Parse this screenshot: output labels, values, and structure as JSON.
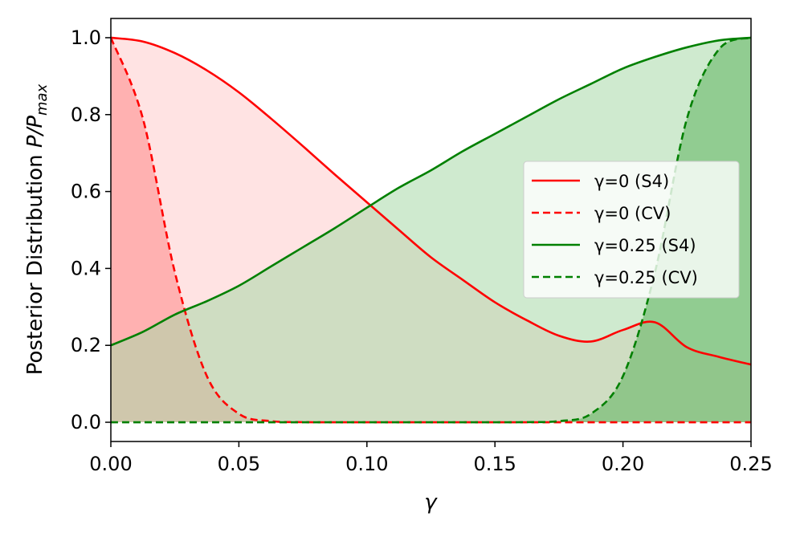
{
  "chart_data": {
    "type": "line",
    "xlabel": "γ",
    "ylabel_main": "Posterior Distribution ",
    "ylabel_math": "P/P",
    "ylabel_sub": "max",
    "xlim": [
      0.0,
      0.25
    ],
    "ylim": [
      -0.05,
      1.05
    ],
    "xticks": [
      0.0,
      0.05,
      0.1,
      0.15,
      0.2,
      0.25
    ],
    "xtick_labels": [
      "0.00",
      "0.05",
      "0.10",
      "0.15",
      "0.20",
      "0.25"
    ],
    "yticks": [
      0.0,
      0.2,
      0.4,
      0.6,
      0.8,
      1.0
    ],
    "ytick_labels": [
      "0.0",
      "0.2",
      "0.4",
      "0.6",
      "0.8",
      "1.0"
    ],
    "grid": false,
    "legend_position": "center-right",
    "filled": true,
    "x": [
      0.0,
      0.0125,
      0.025,
      0.0375,
      0.05,
      0.0625,
      0.075,
      0.0875,
      0.1,
      0.1125,
      0.125,
      0.1375,
      0.15,
      0.1625,
      0.175,
      0.1875,
      0.2,
      0.2125,
      0.225,
      0.2375,
      0.25
    ],
    "series": [
      {
        "name": "γ=0 (S4)",
        "color": "#ff0000",
        "fill_color": "#ffcccc",
        "linestyle": "solid",
        "values": [
          1.0,
          0.99,
          0.96,
          0.915,
          0.858,
          0.79,
          0.718,
          0.644,
          0.572,
          0.5,
          0.429,
          0.37,
          0.312,
          0.265,
          0.225,
          0.21,
          0.24,
          0.26,
          0.195,
          0.17,
          0.15
        ]
      },
      {
        "name": "γ=0 (CV)",
        "color": "#ff0000",
        "fill_color": "#ff8888",
        "linestyle": "dashed",
        "values": [
          1.0,
          0.79,
          0.39,
          0.12,
          0.022,
          0.003,
          0.0003,
          0.0,
          0.0,
          0.0,
          0.0,
          0.0,
          0.0,
          0.0,
          0.0,
          0.0,
          0.0,
          0.0,
          0.0,
          0.0,
          0.0
        ]
      },
      {
        "name": "γ=0.25 (S4)",
        "color": "#008000",
        "fill_color": "#a8d8a8",
        "linestyle": "solid",
        "values": [
          0.2,
          0.235,
          0.28,
          0.315,
          0.355,
          0.405,
          0.455,
          0.505,
          0.558,
          0.61,
          0.655,
          0.705,
          0.75,
          0.795,
          0.84,
          0.88,
          0.92,
          0.95,
          0.975,
          0.993,
          1.0
        ]
      },
      {
        "name": "γ=0.25 (CV)",
        "color": "#008000",
        "fill_color": "#5fb25f",
        "linestyle": "dashed",
        "values": [
          0.0,
          0.0,
          0.0,
          0.0,
          0.0,
          0.0,
          0.0,
          0.0,
          0.0,
          0.0,
          0.0,
          0.0,
          0.0,
          0.0003,
          0.003,
          0.022,
          0.12,
          0.39,
          0.79,
          0.97,
          1.0
        ]
      }
    ]
  }
}
